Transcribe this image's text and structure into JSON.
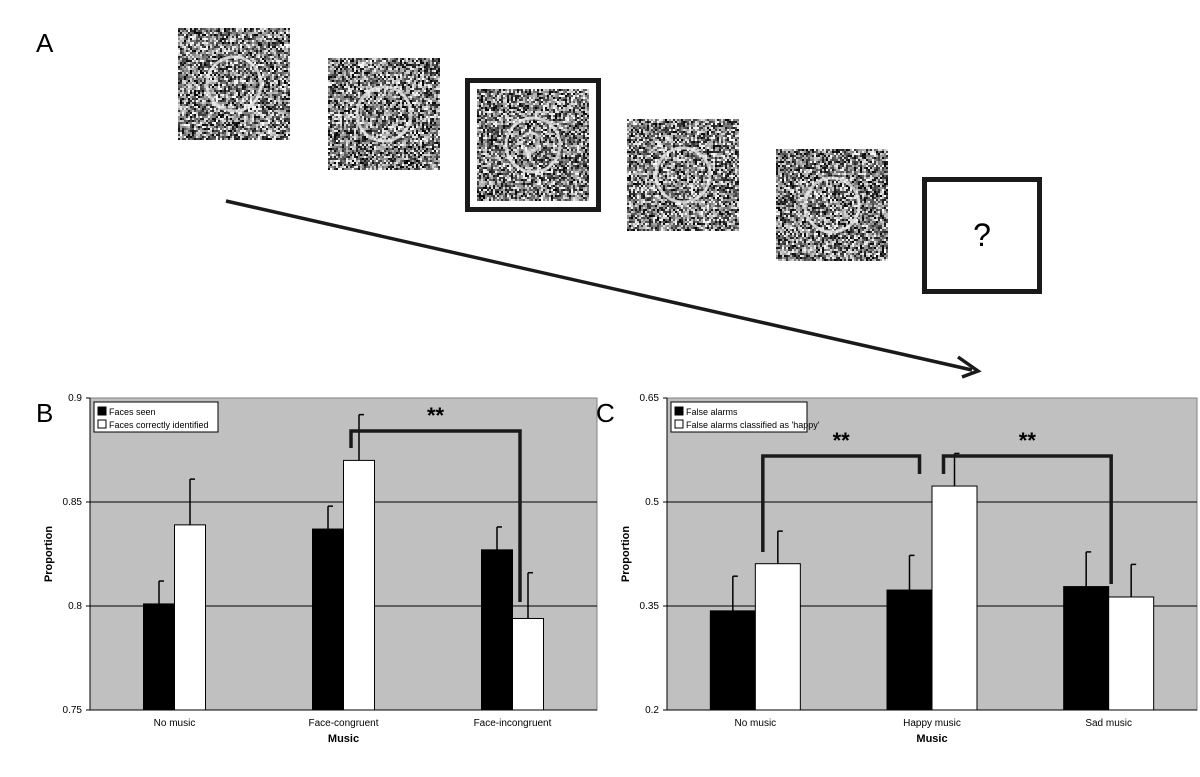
{
  "panel_a": {
    "letter": "A",
    "question_mark": "?"
  },
  "chart_data": [
    {
      "letter": "B",
      "type": "bar",
      "categories": [
        "No music",
        "Face-congruent",
        "Face-incongruent"
      ],
      "series": [
        {
          "name": "Faces seen",
          "values": [
            0.801,
            0.837,
            0.827
          ],
          "errors": [
            0.011,
            0.011,
            0.011
          ],
          "color": "#000000"
        },
        {
          "name": "Faces correctly identified",
          "values": [
            0.839,
            0.87,
            0.794
          ],
          "errors": [
            0.022,
            0.022,
            0.022
          ],
          "color": "#ffffff"
        }
      ],
      "xlabel": "Music",
      "ylabel": "Proportion",
      "ylim": [
        0.75,
        0.9
      ],
      "yticks": [
        "0.75",
        "0.8",
        "0.85",
        "0.9"
      ],
      "ytick_values": [
        0.75,
        0.8,
        0.85,
        0.9
      ],
      "gridlines": [
        0.8,
        0.85
      ],
      "plot_background": "#c0c0c0",
      "legend_position": "top-left",
      "significance": [
        {
          "label": "**",
          "from": [
            1,
            1
          ],
          "to": [
            2,
            1
          ]
        }
      ]
    },
    {
      "letter": "C",
      "type": "bar",
      "categories": [
        "No music",
        "Happy music",
        "Sad music"
      ],
      "series": [
        {
          "name": "False alarms",
          "values": [
            0.343,
            0.373,
            0.378
          ],
          "errors": [
            0.05,
            0.05,
            0.05
          ],
          "color": "#000000"
        },
        {
          "name": "False alarms classified as 'happy'",
          "values": [
            0.411,
            0.523,
            0.363
          ],
          "errors": [
            0.047,
            0.047,
            0.047
          ],
          "color": "#ffffff"
        }
      ],
      "xlabel": "Music",
      "ylabel": "Proportion",
      "ylim": [
        0.2,
        0.65
      ],
      "yticks": [
        "0.2",
        "0.35",
        "0.5",
        "0.65"
      ],
      "ytick_values": [
        0.2,
        0.35,
        0.5,
        0.65
      ],
      "gridlines": [
        0.35,
        0.5
      ],
      "plot_background": "#c0c0c0",
      "legend_position": "top-left",
      "significance": [
        {
          "label": "**",
          "from": [
            0,
            1
          ],
          "to": [
            1,
            1
          ]
        },
        {
          "label": "**",
          "from": [
            1,
            1
          ],
          "to": [
            2,
            1
          ]
        }
      ]
    }
  ]
}
